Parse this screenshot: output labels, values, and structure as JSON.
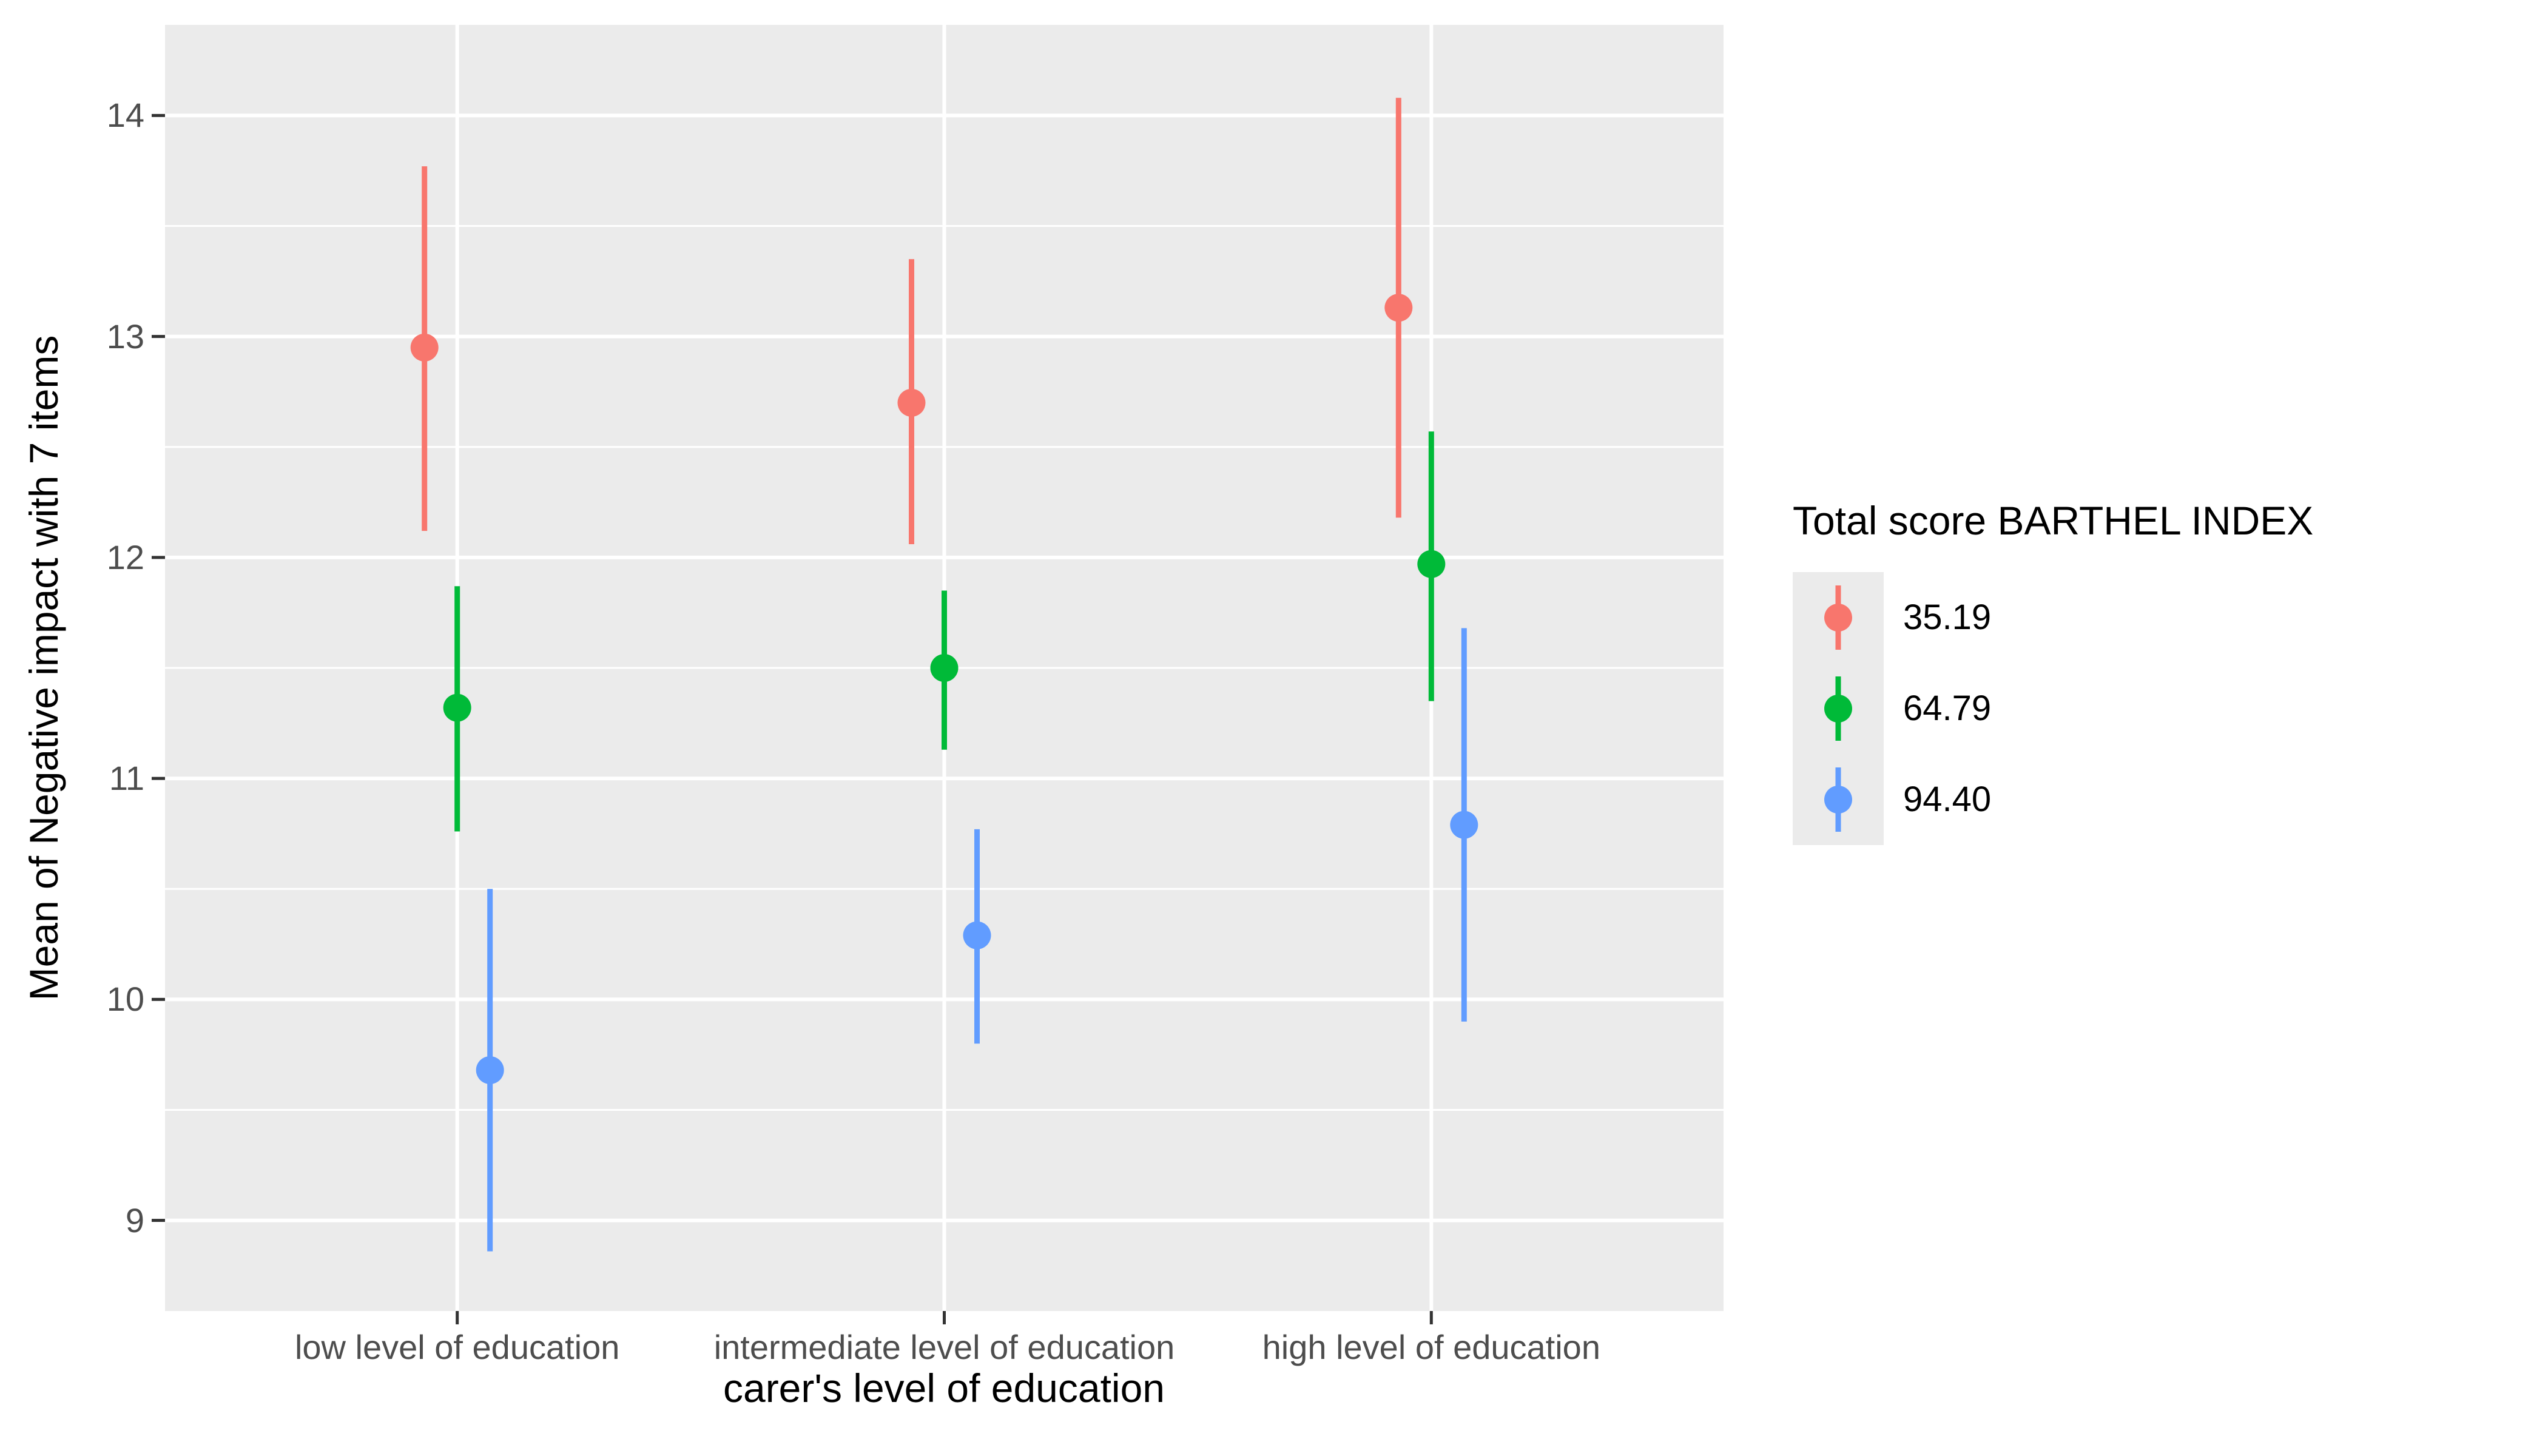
{
  "chart_data": {
    "type": "pointrange",
    "title": "",
    "xlabel": "carer's level of education",
    "ylabel": "Mean of Negative impact with 7 items",
    "categories": [
      "low level of education",
      "intermediate level of education",
      "high level of education"
    ],
    "y_ticks": [
      9,
      10,
      11,
      12,
      13,
      14
    ],
    "y_minor": [
      9.5,
      10.5,
      11.5,
      12.5,
      13.5
    ],
    "ylim": [
      8.59,
      14.41
    ],
    "grid": "on",
    "legend_position": "right",
    "legend_title": "Total score BARTHEL INDEX",
    "panel_bg": "#EBEBEB",
    "grid_color": "#FFFFFF",
    "tick_color": "#333333",
    "tick_label_color": "#4D4D4D",
    "text_color": "#000000",
    "series": [
      {
        "name": "35.19",
        "color": "#F8766D",
        "means": [
          12.95,
          12.7,
          13.13
        ],
        "lower": [
          12.12,
          12.06,
          12.18
        ],
        "upper": [
          13.77,
          13.35,
          14.08
        ]
      },
      {
        "name": "64.79",
        "color": "#00BA38",
        "means": [
          11.32,
          11.5,
          11.97
        ],
        "lower": [
          10.76,
          11.13,
          11.35
        ],
        "upper": [
          11.87,
          11.85,
          12.57
        ]
      },
      {
        "name": "94.40",
        "color": "#619CFF",
        "means": [
          9.68,
          10.29,
          10.79
        ],
        "lower": [
          8.86,
          9.8,
          9.9
        ],
        "upper": [
          10.5,
          10.77,
          11.68
        ]
      }
    ]
  }
}
